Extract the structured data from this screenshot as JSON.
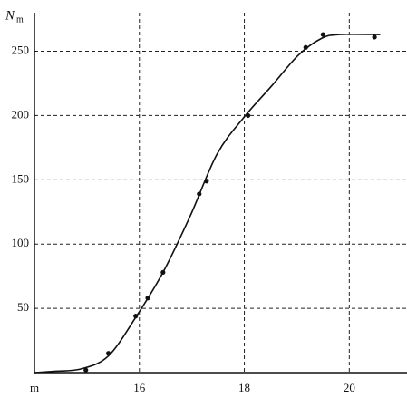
{
  "chart_data": {
    "type": "line",
    "ylabel": "N",
    "ylabel_sub": "m",
    "xlim": [
      14,
      21.1
    ],
    "ylim": [
      0,
      280
    ],
    "xticks": [
      {
        "value": 14,
        "label": "m"
      },
      16,
      18,
      {
        "value": 20,
        "label": "20"
      }
    ],
    "yticks": [
      50,
      100,
      150,
      200,
      250
    ],
    "grid": true,
    "color": "#111",
    "curve": {
      "x": [
        14,
        14.38,
        14.9,
        15.41,
        15.93,
        16.45,
        16.97,
        17.48,
        18,
        18.52,
        19.03,
        19.47,
        19.81,
        20.59
      ],
      "values": [
        0,
        1,
        3,
        13,
        43,
        78,
        122,
        170,
        199,
        223,
        247,
        260,
        263,
        263
      ]
    },
    "points": {
      "x": [
        14.98,
        15.41,
        15.93,
        16.16,
        16.45,
        17.14,
        17.28,
        18.07,
        19.17,
        19.5,
        20.48
      ],
      "values": [
        2,
        15,
        44,
        58,
        78,
        139,
        149,
        200,
        253,
        263,
        261
      ]
    }
  }
}
